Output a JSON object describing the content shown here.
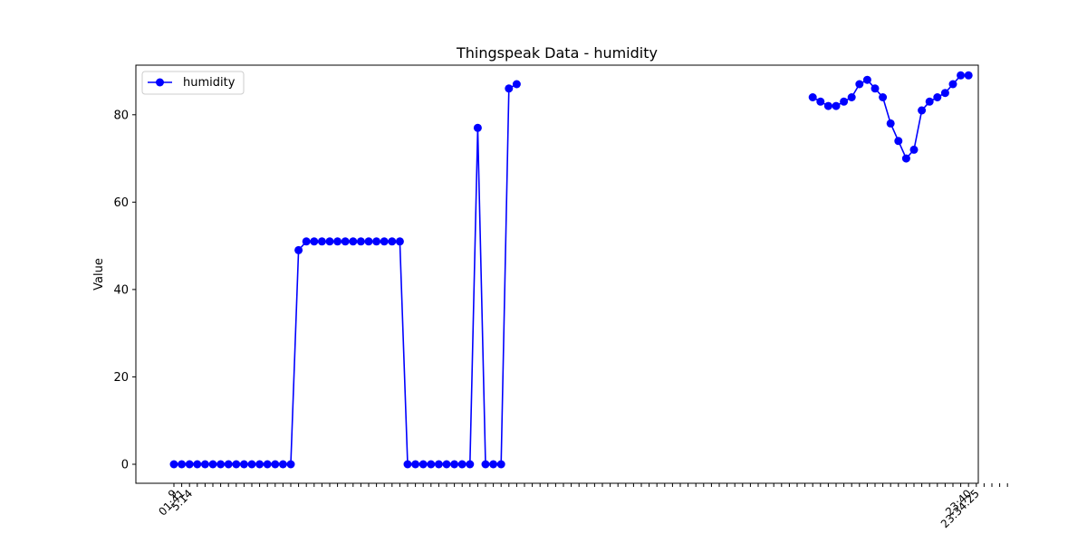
{
  "chart_data": {
    "type": "line",
    "title": "Thingspeak Data - humidity",
    "xlabel": "",
    "ylabel": "Value",
    "ylim": [
      -4.35,
      91.35
    ],
    "yticks": [
      0,
      20,
      40,
      60,
      80
    ],
    "grid": false,
    "legend_position": "top-left",
    "tick_labels_visible": [
      "9",
      "01:41",
      "5:14",
      "",
      "",
      "",
      "",
      "",
      "",
      "",
      "",
      "",
      "",
      "",
      "",
      "",
      "",
      "",
      "",
      "",
      "",
      "",
      "",
      "",
      "",
      "",
      "",
      "",
      "",
      "",
      "",
      "",
      "",
      "",
      "",
      "",
      "",
      "",
      "",
      "",
      "",
      "",
      "",
      "",
      "",
      "",
      "",
      "",
      "",
      "",
      "",
      "",
      "",
      "",
      "",
      "",
      "",
      "",
      "",
      "",
      "",
      "",
      "",
      "",
      "",
      "",
      "",
      "",
      "",
      "",
      "",
      "",
      "",
      "",
      "",
      "",
      "",
      "",
      "",
      "",
      "",
      "",
      "",
      "",
      "",
      "",
      "",
      "",
      "",
      "",
      "",
      "",
      "",
      "",
      "",
      "",
      "",
      "",
      "",
      "",
      "",
      "",
      "23:40",
      "23:34:25"
    ],
    "series": [
      {
        "name": "humidity",
        "color": "#0000ff",
        "marker": "circle",
        "values": [
          0,
          0,
          0,
          0,
          0,
          0,
          0,
          0,
          0,
          0,
          0,
          0,
          0,
          0,
          0,
          0,
          49,
          51,
          51,
          51,
          51,
          51,
          51,
          51,
          51,
          51,
          51,
          51,
          51,
          51,
          0,
          0,
          0,
          0,
          0,
          0,
          0,
          0,
          0,
          77,
          0,
          0,
          0,
          86,
          87,
          null,
          null,
          null,
          null,
          null,
          null,
          null,
          null,
          null,
          null,
          null,
          null,
          null,
          null,
          null,
          null,
          null,
          null,
          null,
          null,
          null,
          null,
          null,
          null,
          null,
          null,
          null,
          null,
          null,
          null,
          null,
          null,
          null,
          null,
          null,
          null,
          null,
          84,
          83,
          82,
          82,
          83,
          84,
          87,
          88,
          86,
          84,
          78,
          74,
          70,
          72,
          81,
          83,
          84,
          85,
          87,
          89,
          89,
          null,
          null,
          null,
          null,
          null
        ]
      }
    ]
  }
}
